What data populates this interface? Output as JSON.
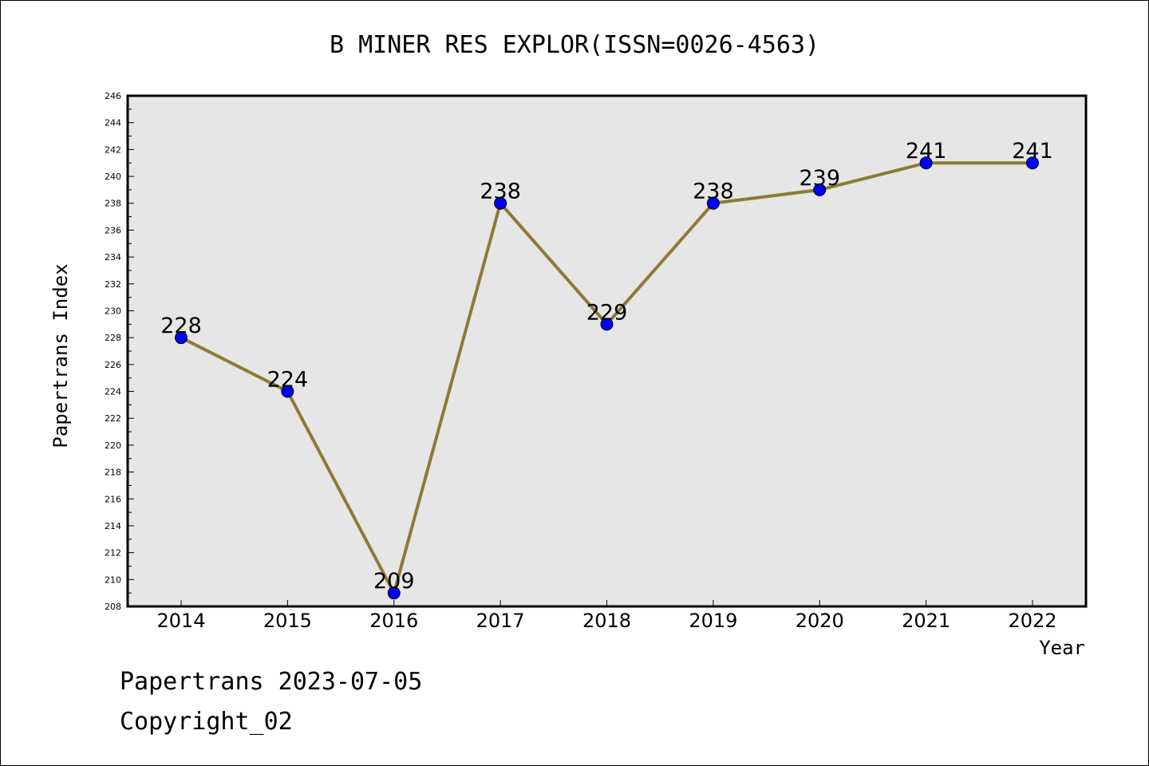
{
  "chart_data": {
    "type": "line",
    "title": "B MINER RES EXPLOR(ISSN=0026-4563)",
    "xlabel": "Year",
    "ylabel": "Papertrans Index",
    "categories": [
      "2014",
      "2015",
      "2016",
      "2017",
      "2018",
      "2019",
      "2020",
      "2021",
      "2022"
    ],
    "series": [
      {
        "values": [
          228,
          224,
          209,
          238,
          229,
          238,
          239,
          241,
          241
        ]
      }
    ],
    "ylim": [
      208,
      246
    ],
    "ytick_step": 2,
    "grid": false,
    "colors": {
      "line": "#8c7a35",
      "marker": "#0000ff",
      "plot_bg": "#e6e6e6"
    }
  },
  "footer": {
    "line1": "Papertrans 2023-07-05",
    "line2": "Copyright_02"
  }
}
